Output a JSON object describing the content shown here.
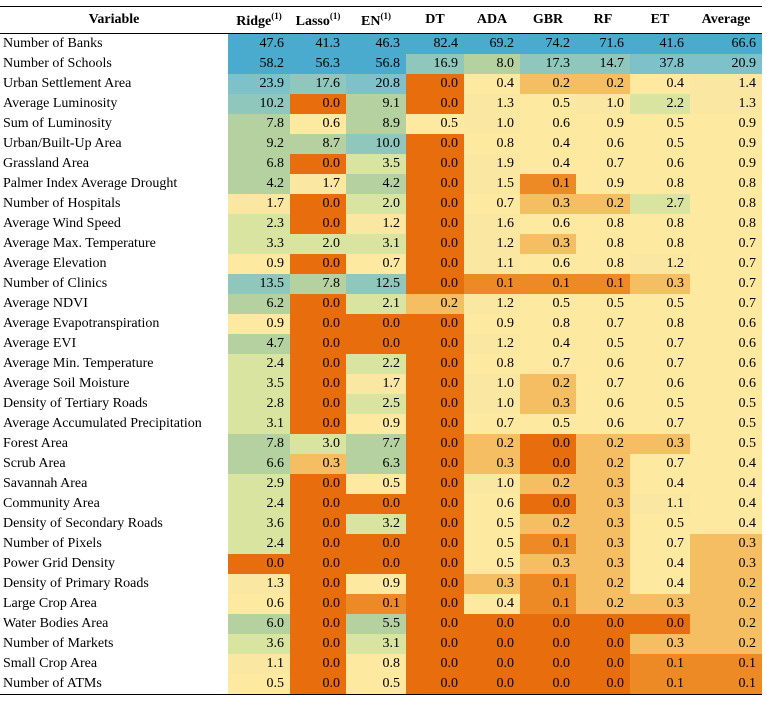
{
  "headers": [
    {
      "label": "Variable",
      "sup": ""
    },
    {
      "label": "Ridge",
      "sup": "(1)"
    },
    {
      "label": "Lasso",
      "sup": "(1)"
    },
    {
      "label": "EN",
      "sup": "(1)"
    },
    {
      "label": "DT",
      "sup": ""
    },
    {
      "label": "ADA",
      "sup": ""
    },
    {
      "label": "GBR",
      "sup": ""
    },
    {
      "label": "RF",
      "sup": ""
    },
    {
      "label": "ET",
      "sup": ""
    },
    {
      "label": "Average",
      "sup": ""
    }
  ],
  "rows": [
    [
      "Number of Banks",
      "47.6",
      "41.3",
      "46.3",
      "82.4",
      "69.2",
      "74.2",
      "71.6",
      "41.6",
      "66.6"
    ],
    [
      "Number of Schools",
      "58.2",
      "56.3",
      "56.8",
      "16.9",
      "8.0",
      "17.3",
      "14.7",
      "37.8",
      "20.9"
    ],
    [
      "Urban Settlement Area",
      "23.9",
      "17.6",
      "20.8",
      "0.0",
      "0.4",
      "0.2",
      "0.2",
      "0.4",
      "1.4"
    ],
    [
      "Average Luminosity",
      "10.2",
      "0.0",
      "9.1",
      "0.0",
      "1.3",
      "0.5",
      "1.0",
      "2.2",
      "1.3"
    ],
    [
      "Sum of Luminosity",
      "7.8",
      "0.6",
      "8.9",
      "0.5",
      "1.0",
      "0.6",
      "0.9",
      "0.5",
      "0.9"
    ],
    [
      "Urban/Built-Up Area",
      "9.2",
      "8.7",
      "10.0",
      "0.0",
      "0.8",
      "0.4",
      "0.6",
      "0.5",
      "0.9"
    ],
    [
      "Grassland Area",
      "6.8",
      "0.0",
      "3.5",
      "0.0",
      "1.9",
      "0.4",
      "0.7",
      "0.6",
      "0.9"
    ],
    [
      "Palmer Index Average Drought",
      "4.2",
      "1.7",
      "4.2",
      "0.0",
      "1.5",
      "0.1",
      "0.9",
      "0.8",
      "0.8"
    ],
    [
      "Number of Hospitals",
      "1.7",
      "0.0",
      "2.0",
      "0.0",
      "0.7",
      "0.3",
      "0.2",
      "2.7",
      "0.8"
    ],
    [
      "Average Wind Speed",
      "2.3",
      "0.0",
      "1.2",
      "0.0",
      "1.6",
      "0.6",
      "0.8",
      "0.8",
      "0.8"
    ],
    [
      "Average Max. Temperature",
      "3.3",
      "2.0",
      "3.1",
      "0.0",
      "1.2",
      "0.3",
      "0.8",
      "0.8",
      "0.7"
    ],
    [
      "Average Elevation",
      "0.9",
      "0.0",
      "0.7",
      "0.0",
      "1.1",
      "0.6",
      "0.8",
      "1.2",
      "0.7"
    ],
    [
      "Number of Clinics",
      "13.5",
      "7.8",
      "12.5",
      "0.0",
      "0.1",
      "0.1",
      "0.1",
      "0.3",
      "0.7"
    ],
    [
      "Average NDVI",
      "6.2",
      "0.0",
      "2.1",
      "0.2",
      "1.2",
      "0.5",
      "0.5",
      "0.5",
      "0.7"
    ],
    [
      "Average Evapotranspiration",
      "0.9",
      "0.0",
      "0.0",
      "0.0",
      "0.9",
      "0.8",
      "0.7",
      "0.8",
      "0.6"
    ],
    [
      "Average EVI",
      "4.7",
      "0.0",
      "0.0",
      "0.0",
      "1.2",
      "0.4",
      "0.5",
      "0.7",
      "0.6"
    ],
    [
      "Average Min. Temperature",
      "2.4",
      "0.0",
      "2.2",
      "0.0",
      "0.8",
      "0.7",
      "0.6",
      "0.7",
      "0.6"
    ],
    [
      "Average Soil Moisture",
      "3.5",
      "0.0",
      "1.7",
      "0.0",
      "1.0",
      "0.2",
      "0.7",
      "0.6",
      "0.6"
    ],
    [
      "Density of Tertiary Roads",
      "2.8",
      "0.0",
      "2.5",
      "0.0",
      "1.0",
      "0.3",
      "0.6",
      "0.5",
      "0.5"
    ],
    [
      "Average Accumulated Precipitation",
      "3.1",
      "0.0",
      "0.9",
      "0.0",
      "0.7",
      "0.5",
      "0.6",
      "0.7",
      "0.5"
    ],
    [
      "Forest Area",
      "7.8",
      "3.0",
      "7.7",
      "0.0",
      "0.2",
      "0.0",
      "0.2",
      "0.3",
      "0.5"
    ],
    [
      "Scrub Area",
      "6.6",
      "0.3",
      "6.3",
      "0.0",
      "0.3",
      "0.0",
      "0.2",
      "0.7",
      "0.4"
    ],
    [
      "Savannah Area",
      "2.9",
      "0.0",
      "0.5",
      "0.0",
      "1.0",
      "0.2",
      "0.3",
      "0.4",
      "0.4"
    ],
    [
      "Community Area",
      "2.4",
      "0.0",
      "0.0",
      "0.0",
      "0.6",
      "0.0",
      "0.3",
      "1.1",
      "0.4"
    ],
    [
      "Density of Secondary Roads",
      "3.6",
      "0.0",
      "3.2",
      "0.0",
      "0.5",
      "0.2",
      "0.3",
      "0.5",
      "0.4"
    ],
    [
      "Number of Pixels",
      "2.4",
      "0.0",
      "0.0",
      "0.0",
      "0.5",
      "0.1",
      "0.3",
      "0.7",
      "0.3"
    ],
    [
      "Power Grid Density",
      "0.0",
      "0.0",
      "0.0",
      "0.0",
      "0.5",
      "0.3",
      "0.3",
      "0.4",
      "0.3"
    ],
    [
      "Density of Primary Roads",
      "1.3",
      "0.0",
      "0.9",
      "0.0",
      "0.3",
      "0.1",
      "0.2",
      "0.4",
      "0.2"
    ],
    [
      "Large Crop Area",
      "0.6",
      "0.0",
      "0.1",
      "0.0",
      "0.4",
      "0.1",
      "0.2",
      "0.3",
      "0.2"
    ],
    [
      "Water Bodies Area",
      "6.0",
      "0.0",
      "5.5",
      "0.0",
      "0.0",
      "0.0",
      "0.0",
      "0.0",
      "0.2"
    ],
    [
      "Number of Markets",
      "3.6",
      "0.0",
      "3.1",
      "0.0",
      "0.0",
      "0.0",
      "0.0",
      "0.3",
      "0.2"
    ],
    [
      "Small Crop Area",
      "1.1",
      "0.0",
      "0.8",
      "0.0",
      "0.0",
      "0.0",
      "0.0",
      "0.1",
      "0.1"
    ],
    [
      "Number of ATMs",
      "0.5",
      "0.0",
      "0.5",
      "0.0",
      "0.0",
      "0.0",
      "0.0",
      "0.1",
      "0.1"
    ]
  ],
  "colors": {
    "zero": "#e86d0c",
    "deep_orange": "#ee8a26",
    "light_orange": "#f5be62",
    "yellow": "#fde9a0",
    "light_yellow": "#f9e7a2",
    "light_green": "#d9e4a0",
    "green": "#b4d19f",
    "teal": "#8fc7bd",
    "blue": "#4aabce",
    "blue_light": "#7fc1c8"
  }
}
